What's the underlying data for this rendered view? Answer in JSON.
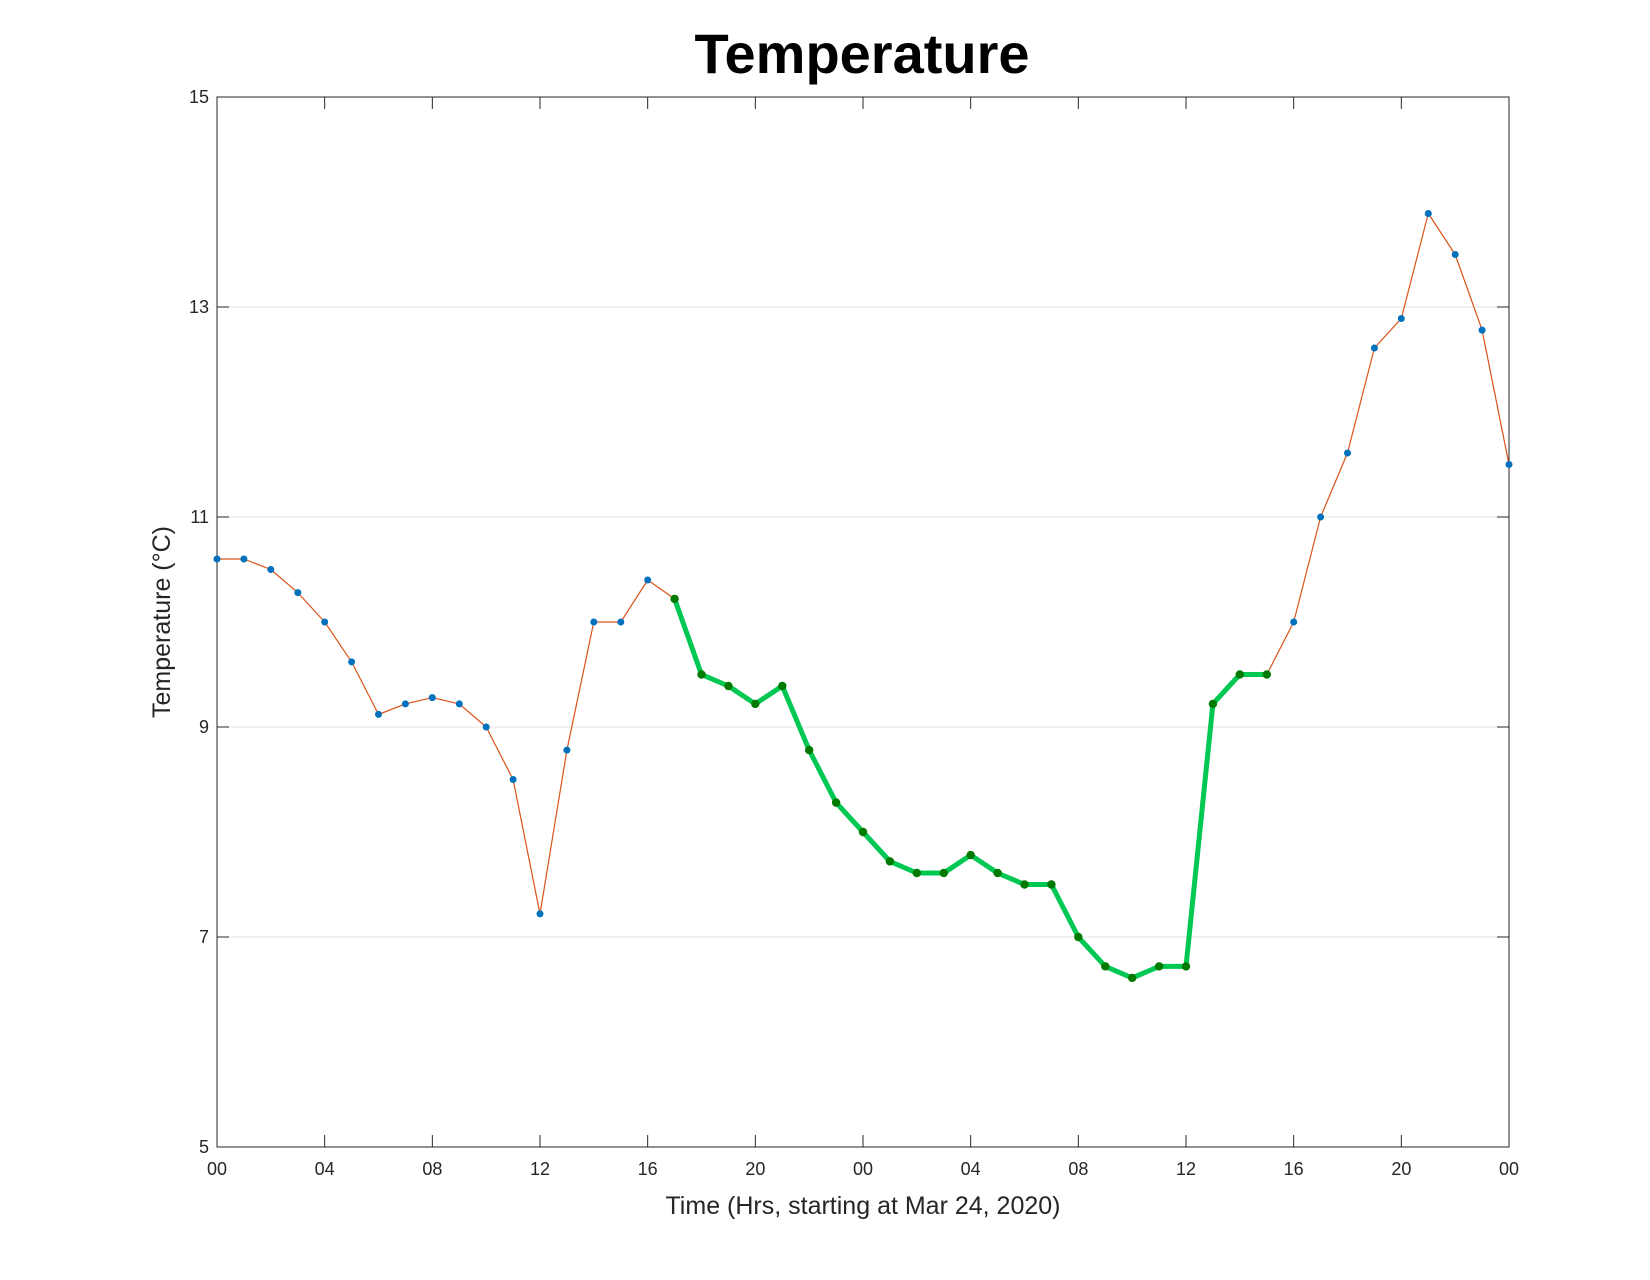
{
  "chart_data": {
    "type": "line",
    "title": "Temperature",
    "xlabel": "Time (Hrs, starting at Mar 24, 2020)",
    "ylabel": "Temperature (°C)",
    "x_unit": "hours from Mar 24, 2020 00:00",
    "xlim": [
      0,
      48
    ],
    "ylim": [
      5,
      15
    ],
    "x_ticks": [
      0,
      4,
      8,
      12,
      16,
      20,
      24,
      28,
      32,
      36,
      40,
      44,
      48
    ],
    "x_tick_labels": [
      "00",
      "04",
      "08",
      "12",
      "16",
      "20",
      "00",
      "04",
      "08",
      "12",
      "16",
      "20",
      "00"
    ],
    "y_ticks": [
      5,
      7,
      9,
      11,
      13,
      15
    ],
    "y_tick_labels": [
      "5",
      "7",
      "9",
      "11",
      "13",
      "15"
    ],
    "grid": "horizontal",
    "series": [
      {
        "role": "full",
        "color": "#d95319",
        "marker_color": "#0072bd",
        "x": [
          0,
          1,
          2,
          3,
          4,
          5,
          6,
          7,
          8,
          9,
          10,
          11,
          12,
          13,
          14,
          15,
          16,
          17,
          18,
          19,
          20,
          21,
          22,
          23,
          24,
          25,
          26,
          27,
          28,
          29,
          30,
          31,
          32,
          33,
          34,
          35,
          36,
          37,
          38,
          39,
          40,
          41,
          42,
          43,
          44,
          45,
          46,
          47,
          48
        ],
        "values": [
          10.6,
          10.6,
          10.5,
          10.28,
          10,
          9.62,
          9.12,
          9.22,
          9.28,
          9.22,
          9,
          8.5,
          7.22,
          8.78,
          10,
          10,
          10.4,
          10.22,
          9.5,
          9.39,
          9.22,
          9.39,
          8.78,
          8.28,
          8,
          7.72,
          7.61,
          7.61,
          7.78,
          7.61,
          7.5,
          7.5,
          7,
          6.72,
          6.61,
          6.72,
          6.72,
          9.22,
          9.5,
          9.5,
          10,
          11,
          11.61,
          12.61,
          12.89,
          13.89,
          13.5,
          12.78,
          11.5
        ]
      },
      {
        "role": "highlight",
        "color": "#00c853",
        "marker_color": "#007a00",
        "x": [
          17,
          18,
          19,
          20,
          21,
          22,
          23,
          24,
          25,
          26,
          27,
          28,
          29,
          30,
          31,
          32,
          33,
          34,
          35,
          36,
          37,
          38,
          39
        ],
        "values": [
          10.22,
          9.5,
          9.39,
          9.22,
          9.39,
          8.78,
          8.28,
          8,
          7.72,
          7.61,
          7.61,
          7.78,
          7.61,
          7.5,
          7.5,
          7,
          6.72,
          6.61,
          6.72,
          6.72,
          9.22,
          9.5,
          9.5
        ]
      }
    ]
  }
}
